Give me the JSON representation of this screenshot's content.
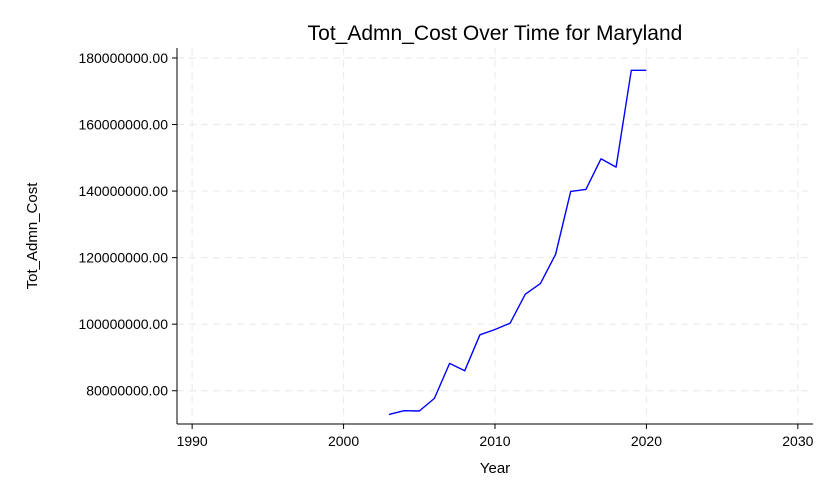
{
  "chart_data": {
    "type": "line",
    "title": "Tot_Admn_Cost Over Time for Maryland",
    "xlabel": "Year",
    "ylabel": "Tot_Admn_Cost",
    "xlim": [
      1989,
      2031
    ],
    "ylim": [
      70000000,
      183000000
    ],
    "xticks": [
      1990,
      2000,
      2010,
      2020,
      2030
    ],
    "xtick_labels": [
      "1990",
      "2000",
      "2010",
      "2020",
      "2030"
    ],
    "yticks": [
      80000000,
      100000000,
      120000000,
      140000000,
      160000000,
      180000000
    ],
    "ytick_labels": [
      "80000000.00",
      "100000000.00",
      "120000000.00",
      "140000000.00",
      "160000000.00",
      "180000000.00"
    ],
    "grid": true,
    "line_color": "#0000ff",
    "x": [
      2003,
      2004,
      2005,
      2006,
      2007,
      2008,
      2009,
      2010,
      2011,
      2012,
      2013,
      2014,
      2015,
      2016,
      2017,
      2018,
      2019,
      2020
    ],
    "y": [
      72900000,
      74000000,
      73900000,
      77700000,
      88200000,
      86000000,
      96800000,
      98400000,
      100300000,
      109000000,
      112200000,
      121000000,
      139900000,
      140500000,
      149700000,
      147200000,
      176300000,
      176300000
    ]
  }
}
